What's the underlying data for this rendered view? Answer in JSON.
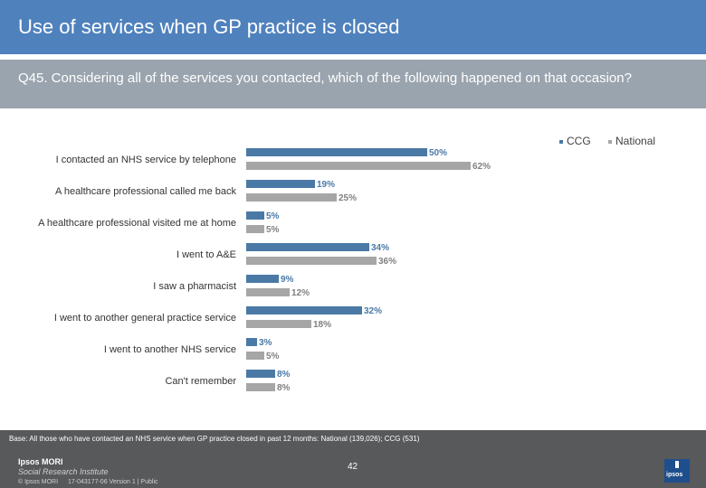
{
  "header": {
    "title": "Use of services when GP practice is closed"
  },
  "question": {
    "text": "Q45. Considering all of the services you contacted, which of the following happened on that occasion?"
  },
  "legend": {
    "ccg": "CCG",
    "national": "National"
  },
  "colors": {
    "ccg": "#4a79a6",
    "national": "#a6a6a6"
  },
  "chart_data": {
    "type": "bar",
    "orientation": "horizontal",
    "categories": [
      "I contacted an NHS service by telephone",
      "A healthcare professional called me back",
      "A healthcare professional visited me at home",
      "I went to A&E",
      "I saw a pharmacist",
      "I went to another general practice service",
      "I went to another NHS service",
      "Can't remember"
    ],
    "series": [
      {
        "name": "CCG",
        "values": [
          50,
          19,
          5,
          34,
          9,
          32,
          3,
          8
        ],
        "labels": [
          "50%",
          "19%",
          "5%",
          "34%",
          "9%",
          "32%",
          "3%",
          "8%"
        ]
      },
      {
        "name": "National",
        "values": [
          62,
          25,
          5,
          36,
          12,
          18,
          5,
          8
        ],
        "labels": [
          "62%",
          "25%",
          "5%",
          "36%",
          "12%",
          "18%",
          "5%",
          "8%"
        ]
      }
    ],
    "legend_position": "top-right",
    "grid": false
  },
  "footer": {
    "base": "Base: All those who have contacted an NHS service when GP practice closed in past 12 months: National (139,026); CCG (531)",
    "brand": "Ipsos MORI",
    "brand_sub": "Social Research Institute",
    "copyright": "© Ipsos MORI",
    "job_ref": "17-043177-06 Version 1 | Public",
    "page": "42"
  }
}
